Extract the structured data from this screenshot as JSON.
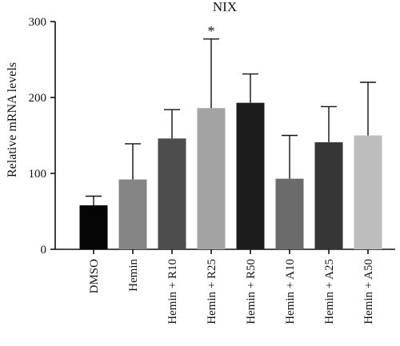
{
  "chart_data": {
    "type": "bar",
    "title": "NIX",
    "ylabel": "Relative mRNA levels",
    "xlabel": "",
    "ylim": [
      0,
      300
    ],
    "yticks": [
      0,
      100,
      200,
      300
    ],
    "grid": false,
    "categories": [
      "DMSO",
      "Hemin",
      "Hemin + R10",
      "Hemin + R25",
      "Hemin + R50",
      "Hemin + A10",
      "Hemin + A25",
      "Hemin + A50"
    ],
    "values": [
      58,
      92,
      146,
      186,
      193,
      93,
      141,
      150
    ],
    "errors": [
      12,
      47,
      38,
      91,
      38,
      57,
      47,
      70
    ],
    "colors": [
      "#050505",
      "#858585",
      "#4d4d4d",
      "#a3a3a3",
      "#1c1c1c",
      "#6b6b6b",
      "#363636",
      "#bdbdbd"
    ],
    "annotations": [
      {
        "category": "Hemin + R25",
        "text": "*"
      }
    ]
  }
}
